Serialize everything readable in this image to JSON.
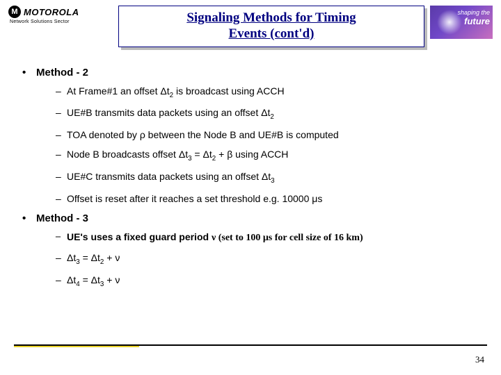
{
  "header": {
    "logo_brand": "MOTOROLA",
    "logo_glyph": "M",
    "sector": "Network Solutions Sector",
    "title_line1": "Signaling Methods for Timing",
    "title_line2": "Events (cont'd)",
    "future_line1": "shaping the",
    "future_line2": "future"
  },
  "method2": {
    "heading": "Method - 2",
    "items": [
      {
        "pre": "At Frame#1 an offset ",
        "sym": "Δt",
        "sub": "2",
        "post": " is broadcast using ACCH"
      },
      {
        "pre": "UE#B transmits data packets using an offset ",
        "sym": "Δt",
        "sub": "2",
        "post": ""
      },
      {
        "pre": "TOA denoted by ",
        "sym": "ρ",
        "sub": "",
        "post": " between the Node B and UE#B is computed"
      },
      {
        "pre": " Node B broadcasts offset ",
        "sym": "Δt",
        "sub": "3",
        "mid": " = ",
        "sym2": "Δt",
        "sub2": "2",
        "mid2": " + ",
        "sym3": "β",
        "post": " using ACCH"
      },
      {
        "pre": "UE#C transmits data packets using an offset ",
        "sym": "Δt",
        "sub": "3",
        "post": ""
      },
      {
        "pre": " Offset is reset after it reaches a set threshold e.g. 10000 ",
        "sym": "μs",
        "sub": "",
        "post": ""
      }
    ]
  },
  "method3": {
    "heading": "Method - 3",
    "items": [
      {
        "pre": "UE's uses a fixed guard period ",
        "sym": "ν",
        "post_serif": " (set to 100 μs for cell size of 16 km)"
      },
      {
        "sym": "Δt",
        "sub": "3",
        "mid": " = ",
        "sym2": "Δt",
        "sub2": "2",
        "mid2": " + ",
        "sym3": "ν"
      },
      {
        "sym": "Δt",
        "sub": "4",
        "mid": " = ",
        "sym2": "Δt",
        "sub2": "3",
        "mid2": " + ",
        "sym3": "ν"
      }
    ]
  },
  "page": "34"
}
